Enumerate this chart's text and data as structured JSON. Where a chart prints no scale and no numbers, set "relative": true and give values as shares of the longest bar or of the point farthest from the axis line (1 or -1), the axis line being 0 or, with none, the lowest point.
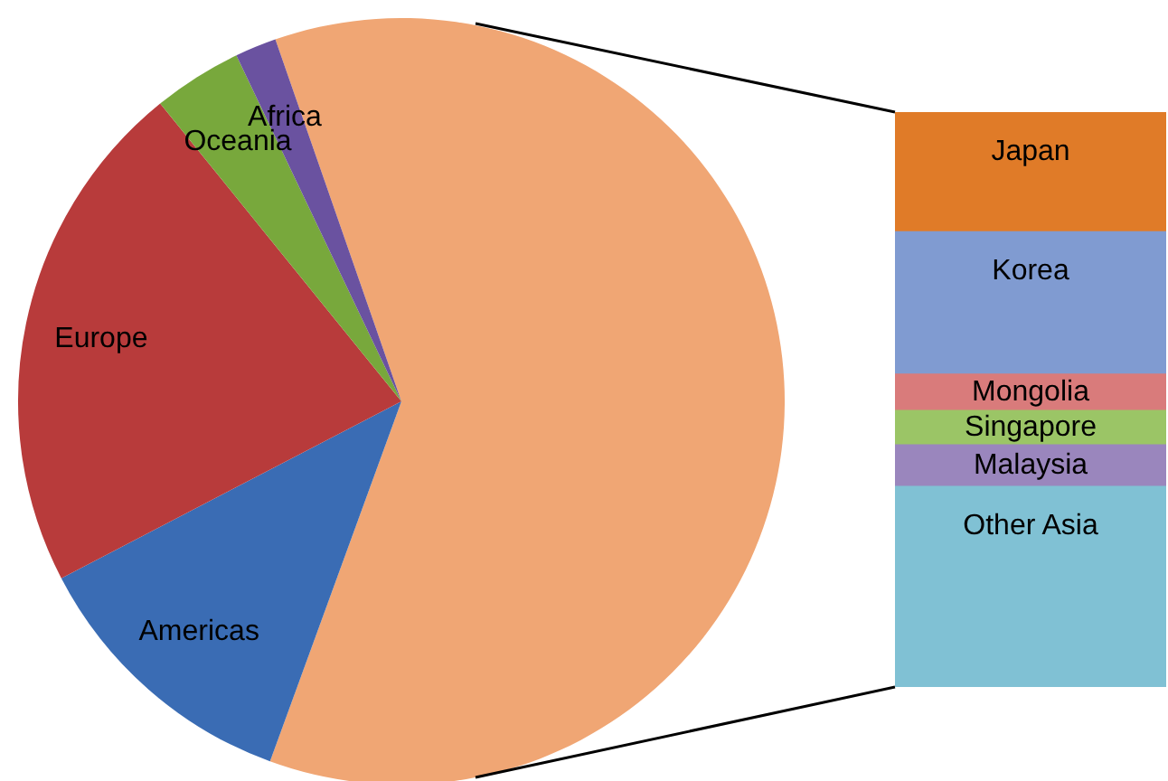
{
  "chart_data": [
    {
      "type": "pie",
      "categories": [
        null,
        "Americas",
        "Europe",
        "Oceania",
        "Africa"
      ],
      "values": [
        60.9,
        11.8,
        21.8,
        3.75,
        1.75
      ],
      "colors": [
        "#f0a674",
        "#3a6cb4",
        "#b83b3b",
        "#78a83c",
        "#6a52a0"
      ]
    },
    {
      "type": "bar",
      "stacked": true,
      "relative": true,
      "categories": [
        null
      ],
      "series": [
        {
          "name": "Other Asia",
          "color": "#80c1d4",
          "values": [
            0.349
          ]
        },
        {
          "name": "Malaysia",
          "color": "#9a86bd",
          "values": [
            0.072
          ]
        },
        {
          "name": "Singapore",
          "color": "#9bc566",
          "values": [
            0.06
          ]
        },
        {
          "name": "Mongolia",
          "color": "#d97b7b",
          "values": [
            0.063
          ]
        },
        {
          "name": "Korea",
          "color": "#809bd1",
          "values": [
            0.248
          ]
        },
        {
          "name": "Japan",
          "color": "#e07b28",
          "values": [
            0.208
          ]
        }
      ]
    }
  ]
}
